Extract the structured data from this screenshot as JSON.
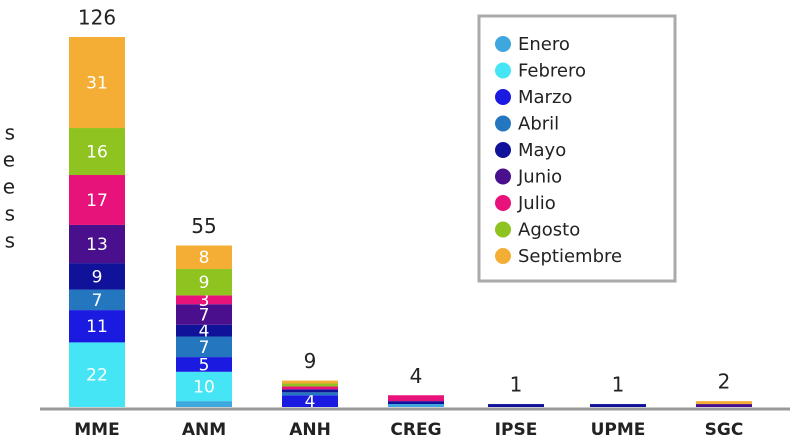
{
  "chart_data": {
    "type": "stacked_bar",
    "annotations": [
      "s",
      "e",
      "e",
      "s",
      "s"
    ],
    "categories": [
      "MME",
      "ANM",
      "ANH",
      "CREG",
      "IPSE",
      "UPME",
      "SGC"
    ],
    "totals": [
      126,
      55,
      9,
      4,
      1,
      1,
      2
    ],
    "series": [
      {
        "name": "Enero",
        "color": "#3ea7dd",
        "values": [
          0,
          2,
          0,
          1,
          0,
          0,
          0
        ]
      },
      {
        "name": "Febrero",
        "color": "#45e5f5",
        "values": [
          22,
          10,
          0,
          0,
          0,
          0,
          0
        ]
      },
      {
        "name": "Marzo",
        "color": "#1a1ae0",
        "values": [
          11,
          5,
          4,
          0,
          0,
          0,
          0
        ]
      },
      {
        "name": "Abril",
        "color": "#2477bf",
        "values": [
          7,
          7,
          1,
          0,
          0,
          0,
          0
        ]
      },
      {
        "name": "Mayo",
        "color": "#10129a",
        "values": [
          9,
          4,
          1,
          1,
          1,
          1,
          0
        ]
      },
      {
        "name": "Junio",
        "color": "#4a0f8c",
        "values": [
          13,
          7,
          0,
          0,
          0,
          0,
          1
        ]
      },
      {
        "name": "Julio",
        "color": "#e8137a",
        "values": [
          17,
          3,
          1,
          2,
          0,
          0,
          0
        ]
      },
      {
        "name": "Agosto",
        "color": "#8fc31f",
        "values": [
          16,
          9,
          1,
          0,
          0,
          0,
          0
        ]
      },
      {
        "name": "Septiembre",
        "color": "#f5ae35",
        "values": [
          31,
          8,
          1,
          0,
          0,
          0,
          1
        ]
      }
    ],
    "ylim": [
      0,
      126
    ],
    "legend": "upper right"
  }
}
